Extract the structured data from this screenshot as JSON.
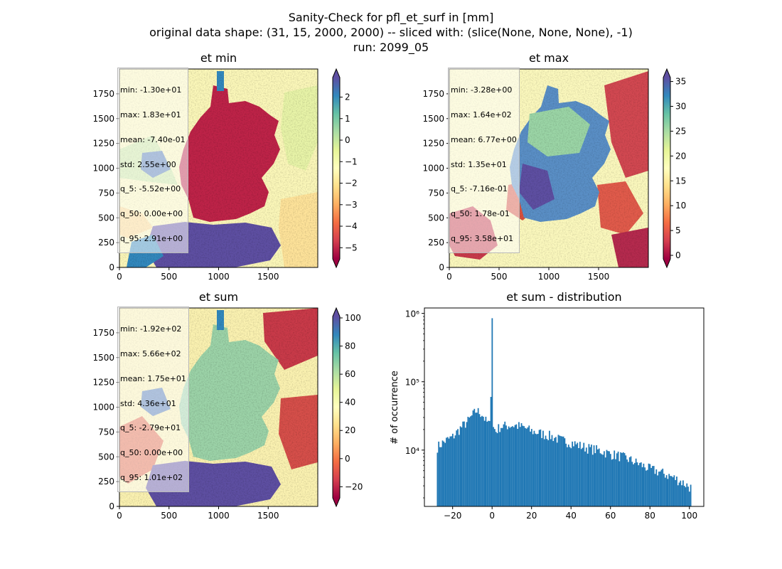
{
  "figure": {
    "title_lines": [
      "Sanity-Check for pfl_et_surf in [mm]",
      "original data shape: (31, 15, 2000, 2000) -- sliced with: (slice(None, None, None), -1)",
      "run: 2099_05"
    ]
  },
  "colormap": {
    "name": "Spectral",
    "stops": [
      "#9e0142",
      "#d53e4f",
      "#f46d43",
      "#fdae61",
      "#fee08b",
      "#ffffbf",
      "#e6f598",
      "#abdda4",
      "#66c2a5",
      "#3288bd",
      "#5e4fa2"
    ]
  },
  "chart_data": [
    {
      "type": "heatmap",
      "id": "et_min",
      "title": "et min",
      "xticks": [
        0,
        500,
        1000,
        1500
      ],
      "yticks": [
        0,
        250,
        500,
        750,
        1000,
        1250,
        1500,
        1750
      ],
      "xlim": [
        0,
        2000
      ],
      "ylim": [
        0,
        2000
      ],
      "colorbar": {
        "ticks": [
          2,
          1,
          0,
          -1,
          -2,
          -3,
          -4,
          -5
        ],
        "tick_labels": [
          "2",
          "1",
          "0",
          "−1",
          "−2",
          "−3",
          "−4",
          "−5"
        ],
        "range": [
          -5.52,
          2.91
        ],
        "extend": "both"
      },
      "stats": [
        "min: -1.30e+01",
        "max: 1.83e+01",
        "mean: -7.40e-01",
        "std: 2.55e+00",
        "q_5: -5.52e+00",
        "q_50: 0.00e+00",
        "q_95: 2.91e+00"
      ]
    },
    {
      "type": "heatmap",
      "id": "et_max",
      "title": "et max",
      "xticks": [
        0,
        500,
        1000,
        1500
      ],
      "yticks": [
        0,
        250,
        500,
        750,
        1000,
        1250,
        1500,
        1750
      ],
      "xlim": [
        0,
        2000
      ],
      "ylim": [
        0,
        2000
      ],
      "colorbar": {
        "ticks": [
          35,
          30,
          25,
          20,
          15,
          10,
          5,
          0
        ],
        "tick_labels": [
          "35",
          "30",
          "25",
          "20",
          "15",
          "10",
          "5",
          "0"
        ],
        "range": [
          -0.716,
          35.8
        ],
        "extend": "both"
      },
      "stats": [
        "min: -3.28e+00",
        "max: 1.64e+02",
        "mean: 6.77e+00",
        "std: 1.35e+01",
        "q_5: -7.16e-01",
        "q_50: 1.78e-01",
        "q_95: 3.58e+01"
      ]
    },
    {
      "type": "heatmap",
      "id": "et_sum",
      "title": "et sum",
      "xticks": [
        0,
        500,
        1000,
        1500
      ],
      "yticks": [
        0,
        250,
        500,
        750,
        1000,
        1250,
        1500,
        1750
      ],
      "xlim": [
        0,
        2000
      ],
      "ylim": [
        0,
        2000
      ],
      "colorbar": {
        "ticks": [
          100,
          80,
          60,
          40,
          20,
          0,
          -20
        ],
        "tick_labels": [
          "100",
          "80",
          "60",
          "40",
          "20",
          "0",
          "−20"
        ],
        "range": [
          -27.9,
          101
        ],
        "extend": "both"
      },
      "stats": [
        "min: -1.92e+02",
        "max: 5.66e+02",
        "mean: 1.75e+01",
        "std: 4.36e+01",
        "q_5: -2.79e+01",
        "q_50: 0.00e+00",
        "q_95: 1.01e+02"
      ]
    },
    {
      "type": "bar",
      "id": "et_sum_distribution",
      "title": "et sum - distribution",
      "ylabel": "# of occurrence",
      "yscale": "log",
      "xlim": [
        -34.3,
        107.3
      ],
      "ylim": [
        1500,
        1200000
      ],
      "xticks": [
        -20,
        0,
        20,
        40,
        60,
        80,
        100
      ],
      "xtick_labels": [
        "−20",
        "0",
        "20",
        "40",
        "60",
        "80",
        "100"
      ],
      "yticks": [
        10000,
        100000,
        1000000
      ],
      "ytick_labels": [
        "10⁴",
        "10⁵",
        "10⁶"
      ],
      "color": "#1f77b4",
      "bin_range": [
        -28,
        101
      ],
      "bins": 200,
      "profile": [
        [
          -28,
          11000
        ],
        [
          -24,
          13500
        ],
        [
          -20,
          15500
        ],
        [
          -16,
          21000
        ],
        [
          -12,
          27000
        ],
        [
          -8,
          38000
        ],
        [
          -5,
          34000
        ],
        [
          -3,
          26000
        ],
        [
          -2,
          25000
        ],
        [
          -1,
          23000
        ],
        [
          1,
          21000
        ],
        [
          2,
          19000
        ],
        [
          4,
          22000
        ],
        [
          8,
          23000
        ],
        [
          12,
          23000
        ],
        [
          16,
          21500
        ],
        [
          20,
          19000
        ],
        [
          25,
          17500
        ],
        [
          30,
          16000
        ],
        [
          35,
          14000
        ],
        [
          40,
          13000
        ],
        [
          45,
          11500
        ],
        [
          50,
          10500
        ],
        [
          55,
          9800
        ],
        [
          60,
          8800
        ],
        [
          65,
          8200
        ],
        [
          70,
          7200
        ],
        [
          75,
          6200
        ],
        [
          80,
          5300
        ],
        [
          85,
          4800
        ],
        [
          90,
          4200
        ],
        [
          95,
          3600
        ],
        [
          101,
          2800
        ]
      ],
      "peaks": [
        [
          -0.5,
          60000
        ],
        [
          0.0,
          850000
        ]
      ]
    }
  ]
}
